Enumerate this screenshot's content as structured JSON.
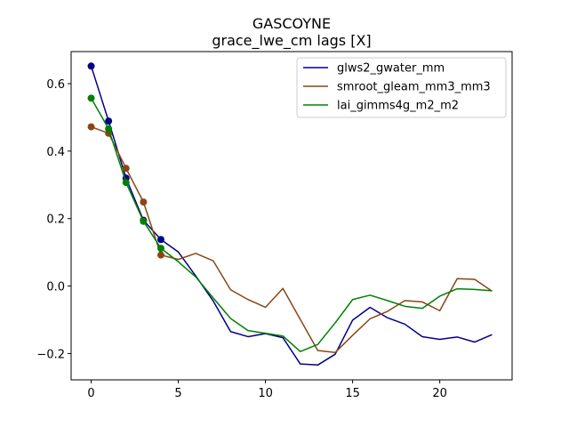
{
  "chart_data": {
    "type": "line",
    "title": "GASCOYNE",
    "subtitle": "grace_lwe_cm lags [X]",
    "xlabel": "",
    "ylabel": "",
    "xlim": [
      -1.15,
      24.15
    ],
    "ylim": [
      -0.278,
      0.695
    ],
    "xticks": [
      0,
      5,
      10,
      15,
      20
    ],
    "yticks": [
      -0.2,
      0.0,
      0.2,
      0.4,
      0.6
    ],
    "ytick_labels": [
      "−0.2",
      "0.0",
      "0.2",
      "0.4",
      "0.6"
    ],
    "grid": false,
    "legend_position": "top-right",
    "x": [
      0,
      1,
      2,
      3,
      4,
      5,
      6,
      7,
      8,
      9,
      10,
      11,
      12,
      13,
      14,
      15,
      16,
      17,
      18,
      19,
      20,
      21,
      22,
      23
    ],
    "series": [
      {
        "name": "glws2_gwater_mm",
        "color": "#00008b",
        "values": [
          0.652,
          0.489,
          0.32,
          0.195,
          0.138,
          0.101,
          0.03,
          -0.044,
          -0.135,
          -0.15,
          -0.141,
          -0.153,
          -0.231,
          -0.234,
          -0.202,
          -0.101,
          -0.063,
          -0.094,
          -0.113,
          -0.15,
          -0.158,
          -0.151,
          -0.166,
          -0.144
        ],
        "markers_upto": 4
      },
      {
        "name": "smroot_gleam_mm3_mm3",
        "color": "#8b4513",
        "values": [
          0.472,
          0.453,
          0.349,
          0.249,
          0.092,
          0.079,
          0.097,
          0.075,
          -0.011,
          -0.04,
          -0.063,
          -0.007,
          -0.099,
          -0.191,
          -0.197,
          -0.146,
          -0.097,
          -0.075,
          -0.043,
          -0.047,
          -0.073,
          0.022,
          0.02,
          -0.015
        ],
        "markers_upto": 4
      },
      {
        "name": "lai_gimms4g_m2_m2",
        "color": "#008000",
        "values": [
          0.557,
          0.466,
          0.307,
          0.192,
          0.112,
          0.072,
          0.027,
          -0.035,
          -0.096,
          -0.132,
          -0.14,
          -0.148,
          -0.194,
          -0.173,
          -0.109,
          -0.04,
          -0.027,
          -0.043,
          -0.06,
          -0.066,
          -0.03,
          -0.008,
          -0.01,
          -0.014
        ],
        "markers_upto": 4
      }
    ]
  }
}
